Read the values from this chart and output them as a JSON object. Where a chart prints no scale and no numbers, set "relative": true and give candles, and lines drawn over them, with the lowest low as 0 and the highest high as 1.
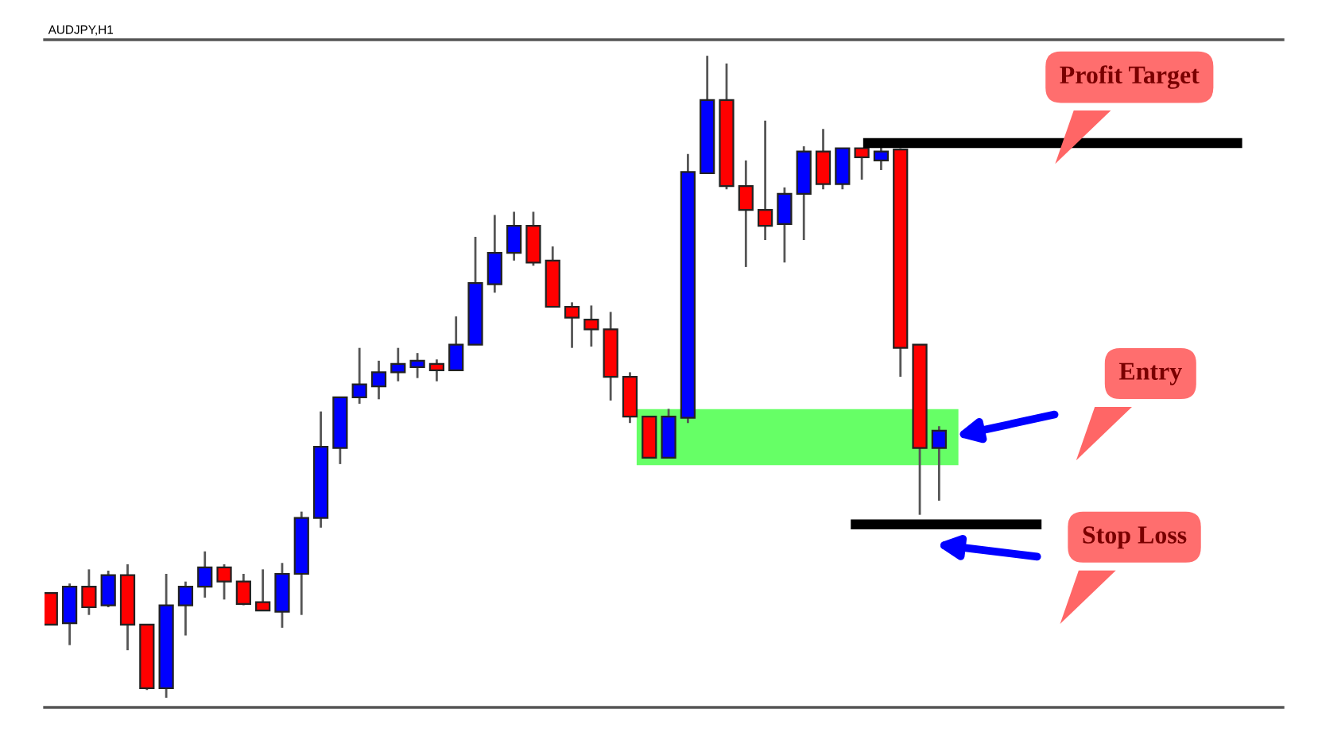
{
  "chart_data": {
    "type": "candlestick",
    "title": "AUDJPY,H1",
    "relative": true,
    "categories": [
      null,
      null,
      null,
      null,
      null,
      null,
      null,
      null,
      null,
      null,
      null,
      null,
      null,
      null,
      null,
      null,
      null,
      null,
      null,
      null,
      null,
      null,
      null,
      null,
      null,
      null,
      null,
      null,
      null,
      null,
      null,
      null,
      null,
      null,
      null,
      null,
      null,
      null,
      null,
      null,
      null,
      null,
      null,
      null,
      null,
      null,
      null
    ],
    "ohlc": [
      [
        0.163,
        0.163,
        0.114,
        0.114
      ],
      [
        0.116,
        0.178,
        0.082,
        0.173
      ],
      [
        0.173,
        0.2,
        0.129,
        0.141
      ],
      [
        0.144,
        0.198,
        0.141,
        0.191
      ],
      [
        0.191,
        0.208,
        0.074,
        0.114
      ],
      [
        0.114,
        0.114,
        0.012,
        0.015
      ],
      [
        0.015,
        0.193,
        0,
        0.144
      ],
      [
        0.144,
        0.181,
        0.097,
        0.173
      ],
      [
        0.173,
        0.228,
        0.156,
        0.203
      ],
      [
        0.203,
        0.208,
        0.153,
        0.181
      ],
      [
        0.181,
        0.193,
        0.144,
        0.146
      ],
      [
        0.149,
        0.2,
        0.136,
        0.136
      ],
      [
        0.134,
        0.21,
        0.109,
        0.193
      ],
      [
        0.193,
        0.29,
        0.129,
        0.28
      ],
      [
        0.28,
        0.446,
        0.265,
        0.391
      ],
      [
        0.389,
        0.468,
        0.364,
        0.468
      ],
      [
        0.468,
        0.545,
        0.458,
        0.488
      ],
      [
        0.485,
        0.525,
        0.465,
        0.507
      ],
      [
        0.507,
        0.545,
        0.493,
        0.52
      ],
      [
        0.515,
        0.537,
        0.498,
        0.525
      ],
      [
        0.52,
        0.527,
        0.493,
        0.51
      ],
      [
        0.51,
        0.594,
        0.51,
        0.55
      ],
      [
        0.55,
        0.718,
        0.55,
        0.646
      ],
      [
        0.644,
        0.752,
        0.631,
        0.693
      ],
      [
        0.693,
        0.757,
        0.681,
        0.735
      ],
      [
        0.735,
        0.757,
        0.673,
        0.678
      ],
      [
        0.681,
        0.703,
        0.609,
        0.609
      ],
      [
        0.609,
        0.616,
        0.545,
        0.592
      ],
      [
        0.589,
        0.611,
        0.547,
        0.574
      ],
      [
        0.574,
        0.601,
        0.463,
        0.5
      ],
      [
        0.5,
        0.507,
        0.428,
        0.438
      ],
      [
        0.438,
        0.438,
        0.374,
        0.374
      ],
      [
        0.374,
        0.45,
        0.374,
        0.438
      ],
      [
        0.436,
        0.847,
        0.428,
        0.819
      ],
      [
        0.817,
        1,
        0.817,
        0.931
      ],
      [
        0.931,
        0.988,
        0.792,
        0.797
      ],
      [
        0.797,
        0.837,
        0.671,
        0.76
      ],
      [
        0.76,
        0.899,
        0.713,
        0.735
      ],
      [
        0.738,
        0.795,
        0.678,
        0.785
      ],
      [
        0.785,
        0.859,
        0.713,
        0.851
      ],
      [
        0.851,
        0.886,
        0.792,
        0.8
      ],
      [
        0.8,
        0.856,
        0.792,
        0.856
      ],
      [
        0.856,
        0.856,
        0.807,
        0.842
      ],
      [
        0.837,
        0.859,
        0.822,
        0.851
      ],
      [
        0.854,
        0.856,
        0.5,
        0.545
      ],
      [
        0.55,
        0.55,
        0.285,
        0.389
      ],
      [
        0.389,
        0.423,
        0.307,
        0.416
      ]
    ],
    "colors": [
      "#ff0000",
      "#0000ff",
      "#ff0000",
      "#0000ff",
      "#ff0000",
      "#ff0000",
      "#0000ff",
      "#0000ff",
      "#0000ff",
      "#ff0000",
      "#ff0000",
      "#ff0000",
      "#0000ff",
      "#0000ff",
      "#0000ff",
      "#0000ff",
      "#0000ff",
      "#0000ff",
      "#0000ff",
      "#0000ff",
      "#ff0000",
      "#0000ff",
      "#0000ff",
      "#0000ff",
      "#0000ff",
      "#ff0000",
      "#ff0000",
      "#ff0000",
      "#ff0000",
      "#ff0000",
      "#ff0000",
      "#ff0000",
      "#0000ff",
      "#0000ff",
      "#0000ff",
      "#ff0000",
      "#ff0000",
      "#ff0000",
      "#0000ff",
      "#0000ff",
      "#ff0000",
      "#0000ff",
      "#ff0000",
      "#0000ff",
      "#ff0000",
      "#ff0000",
      "#0000ff"
    ],
    "ref_lines": [
      {
        "axis": "y",
        "value": 0.864,
        "label": "Profit Target",
        "color": "#000000"
      },
      {
        "axis": "y",
        "value": 0.27,
        "label": "Stop Loss",
        "color": "#000000"
      }
    ],
    "bands": [
      {
        "axis": "y",
        "from": 0.364,
        "to": 0.448,
        "color": "#66ff66"
      }
    ],
    "annotations": [
      "Entry"
    ]
  }
}
